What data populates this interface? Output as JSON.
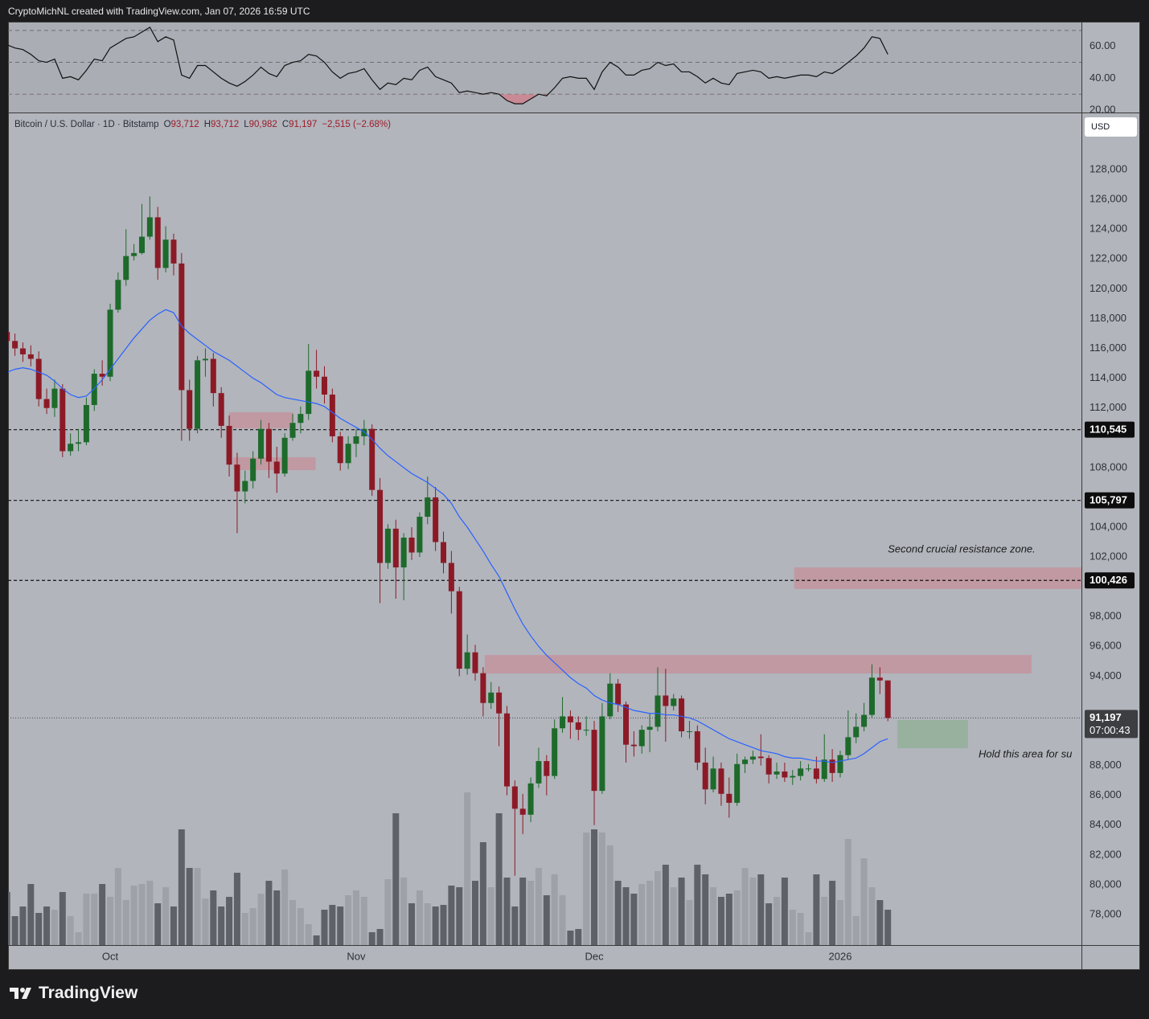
{
  "header": {
    "credit": "CryptoMichNL created with TradingView.com, Jan 07, 2026 16:59 UTC"
  },
  "footer": {
    "brand": "TradingView"
  },
  "chart_data": [
    {
      "type": "line",
      "color": "#111111",
      "values": [
        61,
        59,
        58,
        55,
        51,
        50,
        52,
        40,
        41,
        39,
        45,
        52,
        51,
        59,
        62,
        65,
        66,
        69,
        72,
        63,
        66,
        64,
        42,
        40,
        48,
        48,
        44,
        40,
        37,
        35,
        38,
        42,
        47,
        43,
        41,
        48,
        50,
        51,
        55,
        54,
        50,
        44,
        40,
        43,
        44,
        46,
        39,
        33,
        37,
        36,
        40,
        39,
        45,
        47,
        41,
        39,
        37,
        31,
        32,
        31,
        30,
        31,
        30,
        26,
        24,
        24,
        27,
        30,
        29,
        34,
        40,
        41,
        40,
        40,
        33,
        44,
        50,
        47,
        42,
        42,
        45,
        46,
        50,
        48,
        49,
        44,
        44,
        41,
        37,
        40,
        37,
        36,
        43,
        44,
        45,
        44,
        40,
        41,
        40,
        41,
        42,
        42,
        41,
        44,
        43,
        46,
        50,
        54,
        59,
        66,
        65,
        55
      ],
      "ylim": [
        18.5,
        75.5
      ],
      "yticks": [
        {
          "value": 60,
          "label": "60.00"
        },
        {
          "value": 40,
          "label": "40.00"
        },
        {
          "value": 20,
          "label": "20.00"
        }
      ],
      "levels": [
        70,
        50,
        30
      ],
      "oversold_color": "#c98a95"
    },
    {
      "type": "candlestick",
      "title": "Bitcoin / U.S. Dollar · 1D · Bitstamp",
      "legend": [
        {
          "key": "O",
          "text": "93,712"
        },
        {
          "key": "H",
          "text": "93,712"
        },
        {
          "key": "L",
          "text": "90,982"
        },
        {
          "key": "C",
          "text": "91,197"
        }
      ],
      "change": "−2,515 (−2.68%)",
      "currency": "USD",
      "up_color": "#1d6a2b",
      "down_color": "#8c1a26",
      "open": [
        117100,
        116500,
        116000,
        115600,
        115300,
        112600,
        112000,
        113300,
        109100,
        109600,
        109700,
        112200,
        114300,
        114100,
        118600,
        120600,
        122200,
        122400,
        123500,
        124800,
        121400,
        123300,
        121700,
        113200,
        110600,
        115200,
        115300,
        113000,
        110800,
        108200,
        106400,
        107100,
        108600,
        110600,
        108400,
        107600,
        110000,
        111000,
        111600,
        114500,
        114100,
        112900,
        110100,
        108300,
        109600,
        110100,
        110600,
        106500,
        101600,
        103900,
        101300,
        103300,
        102300,
        104700,
        106000,
        103000,
        101600,
        99700,
        94500,
        95600,
        94200,
        92200,
        92900,
        91500,
        86600,
        85100,
        84700,
        86800,
        88300,
        87300,
        90500,
        91300,
        90900,
        90400,
        90400,
        86300,
        91300,
        93500,
        92100,
        89400,
        89300,
        90400,
        90600,
        92700,
        92000,
        92500,
        90300,
        90300,
        88200,
        86400,
        87800,
        86100,
        85500,
        88100,
        88400,
        88600,
        88500,
        87400,
        87600,
        87200,
        87300,
        87800,
        87800,
        87100,
        88400,
        87500,
        88700,
        89900,
        90600,
        91400,
        93900,
        93712
      ],
      "high": [
        117600,
        117000,
        116400,
        116200,
        115800,
        113300,
        113900,
        113600,
        110300,
        110600,
        112700,
        114600,
        115200,
        119000,
        121100,
        124000,
        123000,
        125700,
        126200,
        125500,
        124200,
        123700,
        122400,
        113900,
        115500,
        116000,
        115700,
        113400,
        111500,
        109000,
        107800,
        109100,
        111200,
        111000,
        109400,
        110300,
        111600,
        112100,
        116300,
        115900,
        114800,
        113300,
        110400,
        110100,
        110600,
        111200,
        110900,
        107300,
        104200,
        104500,
        103600,
        104000,
        105000,
        107400,
        106700,
        103700,
        102400,
        100000,
        96800,
        96100,
        94600,
        93600,
        93300,
        92000,
        87000,
        86100,
        87200,
        89200,
        88700,
        91100,
        92600,
        91700,
        91300,
        91300,
        91000,
        92200,
        94200,
        93800,
        92300,
        90300,
        90700,
        91500,
        94600,
        94500,
        92800,
        92700,
        91000,
        90700,
        89200,
        88600,
        88200,
        87200,
        88800,
        88600,
        89000,
        90100,
        88700,
        88200,
        88200,
        87700,
        88300,
        88100,
        88600,
        90100,
        89100,
        89000,
        91700,
        91500,
        92200,
        94800,
        94600,
        93712
      ],
      "low": [
        115900,
        115500,
        115100,
        114800,
        112100,
        111600,
        111400,
        108700,
        108800,
        109100,
        109500,
        111800,
        113500,
        113800,
        118400,
        120200,
        121900,
        122300,
        123300,
        120600,
        121100,
        120900,
        109800,
        109800,
        110300,
        114100,
        112100,
        110000,
        107400,
        103600,
        105600,
        106600,
        108200,
        107300,
        106300,
        107400,
        109800,
        110300,
        111200,
        113300,
        112300,
        109700,
        107800,
        107900,
        108700,
        109500,
        106100,
        98900,
        101200,
        99200,
        99100,
        101800,
        102000,
        104200,
        102400,
        100900,
        98200,
        94000,
        94100,
        93700,
        91300,
        91800,
        89300,
        86000,
        80600,
        83400,
        84200,
        86500,
        86000,
        87100,
        90200,
        89800,
        89700,
        90000,
        84000,
        86100,
        91100,
        91600,
        88200,
        88600,
        88800,
        88900,
        90300,
        89600,
        91700,
        89900,
        89800,
        87700,
        85400,
        86200,
        85300,
        84500,
        85300,
        87500,
        88100,
        88000,
        86800,
        87100,
        86900,
        86700,
        87000,
        87600,
        86800,
        86900,
        86900,
        87200,
        88400,
        89500,
        90300,
        91200,
        92800,
        90982
      ],
      "close": [
        116500,
        116000,
        115600,
        115300,
        112600,
        112000,
        113300,
        109100,
        109600,
        109700,
        112200,
        114300,
        114100,
        118600,
        120600,
        122200,
        122400,
        123500,
        124800,
        121400,
        123300,
        121700,
        113200,
        110600,
        115200,
        115300,
        113000,
        110800,
        108200,
        106400,
        107100,
        108600,
        110600,
        108400,
        107600,
        110000,
        111000,
        111600,
        114500,
        114100,
        112900,
        110100,
        108300,
        109600,
        110100,
        110600,
        106500,
        101600,
        103900,
        101300,
        103300,
        102300,
        104700,
        106000,
        103000,
        101600,
        99700,
        94500,
        95600,
        94200,
        92200,
        92900,
        91500,
        86600,
        85100,
        84700,
        86800,
        88300,
        87300,
        90500,
        91300,
        90900,
        90400,
        90400,
        86300,
        91300,
        93500,
        92100,
        89400,
        89300,
        90400,
        90600,
        92700,
        92000,
        92500,
        90300,
        90300,
        88200,
        86400,
        87800,
        86100,
        85500,
        88100,
        88400,
        88600,
        88500,
        87400,
        87600,
        87200,
        87300,
        87800,
        87800,
        87100,
        88400,
        87500,
        88700,
        89900,
        90600,
        91400,
        93900,
        93712,
        91197
      ],
      "volume": [
        33,
        18,
        24,
        38,
        20,
        24,
        22,
        33,
        18,
        8,
        32,
        32,
        38,
        30,
        48,
        28,
        37,
        38,
        40,
        26,
        36,
        24,
        72,
        48,
        48,
        29,
        34,
        24,
        30,
        45,
        20,
        23,
        32,
        40,
        34,
        47,
        28,
        23,
        13,
        6,
        22,
        25,
        24,
        31,
        34,
        30,
        8,
        10,
        41,
        82,
        42,
        26,
        34,
        26,
        24,
        25,
        37,
        36,
        95,
        40,
        64,
        36,
        82,
        42,
        24,
        42,
        40,
        48,
        31,
        44,
        31,
        9,
        10,
        70,
        72,
        70,
        62,
        40,
        36,
        32,
        38,
        40,
        46,
        50,
        36,
        42,
        28,
        50,
        44,
        36,
        30,
        32,
        34,
        48,
        42,
        44,
        26,
        30,
        42,
        22,
        20,
        8,
        44,
        30,
        40,
        28,
        66,
        18,
        54,
        36,
        28,
        22
      ],
      "volume_ylim": [
        0,
        517.5
      ],
      "volume_colors": [
        "#9ea1a8",
        "#5f6168"
      ],
      "ma": {
        "color": "#2962ff",
        "values": [
          114400,
          114600,
          114700,
          114600,
          114400,
          114200,
          113800,
          113300,
          112900,
          112700,
          112800,
          113300,
          113900,
          114600,
          115300,
          116000,
          116700,
          117300,
          117900,
          118300,
          118600,
          118400,
          117500,
          117000,
          116600,
          116200,
          115800,
          115500,
          115200,
          114800,
          114400,
          114000,
          113700,
          113300,
          112900,
          112700,
          112600,
          112500,
          112400,
          112300,
          112100,
          111700,
          111300,
          111000,
          110700,
          110400,
          109900,
          109300,
          108800,
          108400,
          108000,
          107600,
          107300,
          107000,
          106600,
          106200,
          105600,
          104700,
          104000,
          103200,
          102400,
          101500,
          100700,
          99600,
          98500,
          97500,
          96700,
          96000,
          95400,
          94900,
          94400,
          93900,
          93500,
          93200,
          92700,
          92400,
          92200,
          92100,
          91900,
          91700,
          91600,
          91500,
          91500,
          91400,
          91400,
          91300,
          91200,
          91000,
          90700,
          90400,
          90100,
          89800,
          89600,
          89400,
          89200,
          89000,
          88900,
          88800,
          88600,
          88500,
          88500,
          88400,
          88300,
          88300,
          88200,
          88300,
          88400,
          88500,
          88800,
          89200,
          89600,
          89800
        ]
      },
      "xlim": [
        0.13,
        135.4
      ],
      "xticks": [
        {
          "value": 13,
          "label": "Oct"
        },
        {
          "value": 44,
          "label": "Nov"
        },
        {
          "value": 74,
          "label": "Dec"
        },
        {
          "value": 105,
          "label": "2026"
        }
      ],
      "ylim": [
        75950,
        131780
      ],
      "yticks": [
        {
          "value": 128000,
          "label": "128,000"
        },
        {
          "value": 126000,
          "label": "126,000"
        },
        {
          "value": 124000,
          "label": "124,000"
        },
        {
          "value": 122000,
          "label": "122,000"
        },
        {
          "value": 120000,
          "label": "120,000"
        },
        {
          "value": 118000,
          "label": "118,000"
        },
        {
          "value": 116000,
          "label": "116,000"
        },
        {
          "value": 114000,
          "label": "114,000"
        },
        {
          "value": 112000,
          "label": "112,000"
        },
        {
          "value": 108000,
          "label": "108,000"
        },
        {
          "value": 104000,
          "label": "104,000"
        },
        {
          "value": 102000,
          "label": "102,000"
        },
        {
          "value": 98000,
          "label": "98,000"
        },
        {
          "value": 96000,
          "label": "96,000"
        },
        {
          "value": 94000,
          "label": "94,000"
        },
        {
          "value": 88000,
          "label": "88,000"
        },
        {
          "value": 86000,
          "label": "86,000"
        },
        {
          "value": 84000,
          "label": "84,000"
        },
        {
          "value": 82000,
          "label": "82,000"
        },
        {
          "value": 80000,
          "label": "80,000"
        },
        {
          "value": 78000,
          "label": "78,000"
        }
      ],
      "price_lines": [
        {
          "value": 110545,
          "label": "110,545"
        },
        {
          "value": 105797,
          "label": "105,797"
        },
        {
          "value": 100426,
          "label": "100,426"
        }
      ],
      "last_price": {
        "value": 91197,
        "label": "91,197",
        "countdown": "07:00:43"
      },
      "zones": [
        {
          "x0": 28.0,
          "x1": 36.1,
          "y0": 110630,
          "y1": 111710,
          "color": "#c3949e"
        },
        {
          "x0": 28.5,
          "x1": 38.9,
          "y0": 107830,
          "y1": 108690,
          "color": "#c3949e"
        },
        {
          "x0": 99.2,
          "x1": 136,
          "y0": 99850,
          "y1": 101300,
          "color": "#c3949e"
        },
        {
          "x0": 60.2,
          "x1": 129.1,
          "y0": 94180,
          "y1": 95420,
          "color": "#c3949e"
        },
        {
          "x0": 112.2,
          "x1": 121.1,
          "y0": 89160,
          "y1": 91050,
          "color": "#93b09a"
        }
      ],
      "annotations": [
        "Second crucial resistance zone.",
        "Hold this area for su"
      ]
    }
  ]
}
